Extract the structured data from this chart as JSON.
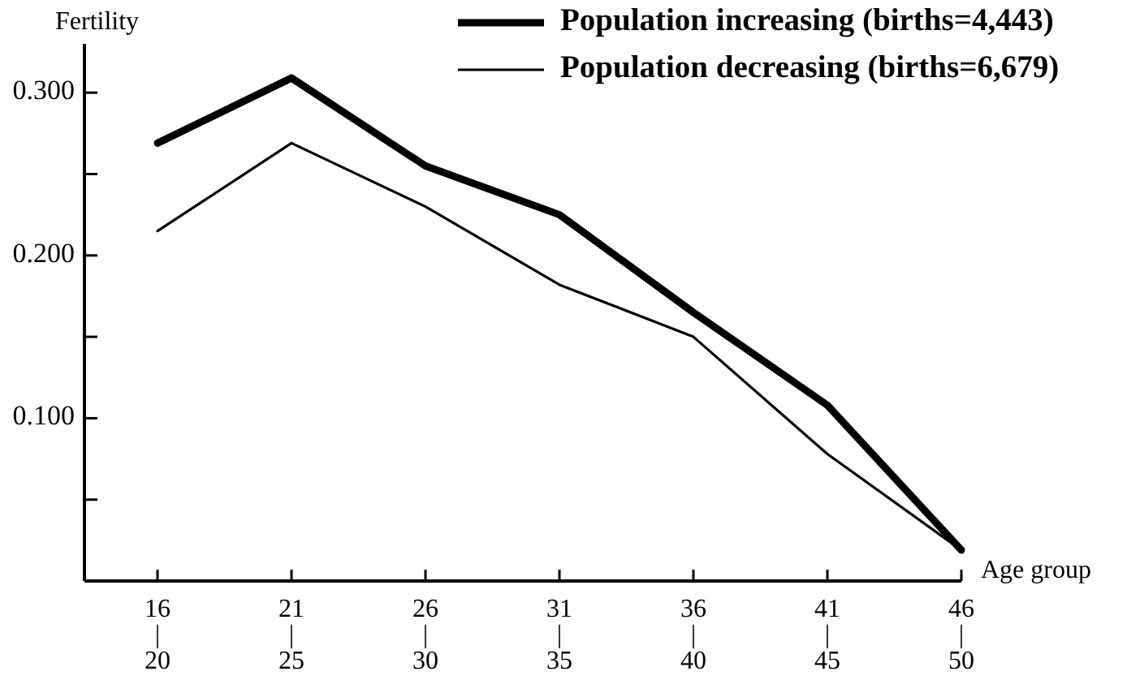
{
  "chart_data": {
    "type": "line",
    "ylabel": "Fertility",
    "xlabel": "Age group",
    "categories": [
      "16|20",
      "21|25",
      "26|30",
      "31|35",
      "36|40",
      "41|45",
      "46|50"
    ],
    "series": [
      {
        "name": "Population increasing (births=4,443)",
        "color": "#000000",
        "values": [
          0.269,
          0.309,
          0.255,
          0.225,
          0.165,
          0.108,
          0.019
        ]
      },
      {
        "name": "Population decreasing (births=6,679)",
        "color": "#000000",
        "values": [
          0.215,
          0.269,
          0.23,
          0.182,
          0.15,
          0.078,
          0.019
        ]
      }
    ],
    "ylim": [
      0,
      0.33
    ],
    "yticks": [
      {
        "value": 0.05,
        "label": null
      },
      {
        "value": 0.1,
        "label": "0.100"
      },
      {
        "value": 0.15,
        "label": null
      },
      {
        "value": 0.2,
        "label": "0.200"
      },
      {
        "value": 0.25,
        "label": null
      },
      {
        "value": 0.3,
        "label": "0.300"
      }
    ],
    "legend": "top right",
    "grid": false,
    "marker": "none",
    "line_style": "solid"
  }
}
